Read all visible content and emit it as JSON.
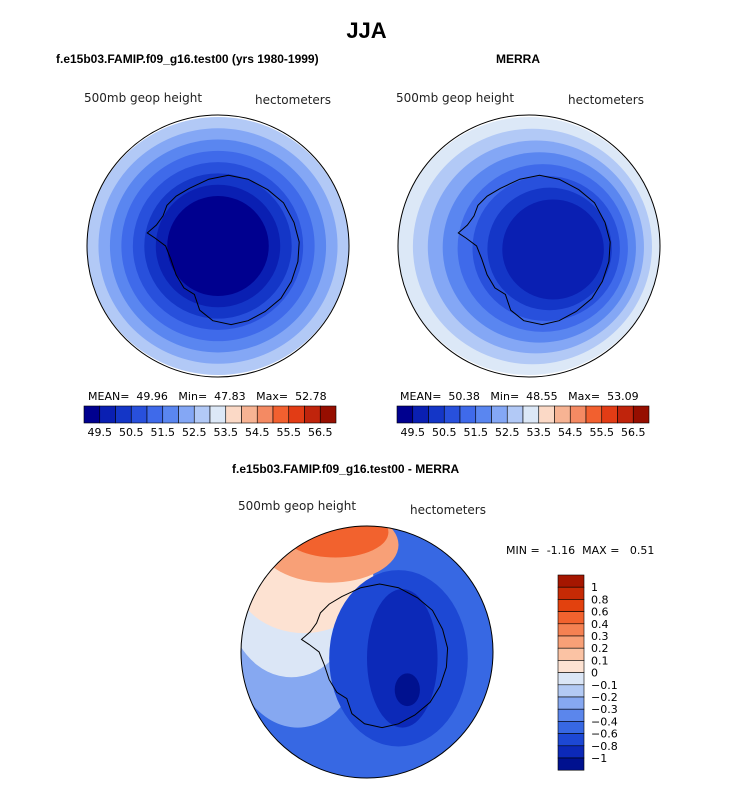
{
  "title": "JJA",
  "chart_data": [
    {
      "type": "heatmap",
      "panel": "model",
      "title": "f.e15b03.FAMIP.f09_g16.test00 (yrs 1980-1999)",
      "variable": "500mb geop height",
      "units": "hectometers",
      "stats": {
        "mean_label": "MEAN=",
        "mean": "49.96",
        "min_label": "Min=",
        "min": "47.83",
        "max_label": "Max=",
        "max": "52.78"
      },
      "colorbar": {
        "ticks": [
          "49.5",
          "50.5",
          "51.5",
          "52.5",
          "53.5",
          "54.5",
          "55.5",
          "56.5"
        ],
        "colors": [
          "#00008f",
          "#0a1fb2",
          "#1436c7",
          "#2850dc",
          "#3f6aea",
          "#5a86f0",
          "#84a7f5",
          "#b2c9f6",
          "#dce8f7",
          "#fbd9c6",
          "#f7b393",
          "#f48a63",
          "#f2602f",
          "#e23c15",
          "#c0240c",
          "#960e00"
        ]
      },
      "rings": [
        "#00008f",
        "#0a1fb2",
        "#1436c7",
        "#2850dc",
        "#3f6aea",
        "#5a86f0",
        "#84a7f5",
        "#b2c9f6"
      ]
    },
    {
      "type": "heatmap",
      "panel": "observations",
      "title": "MERRA",
      "variable": "500mb geop height",
      "units": "hectometers",
      "stats": {
        "mean_label": "MEAN=",
        "mean": "50.38",
        "min_label": "Min=",
        "min": "48.55",
        "max_label": "Max=",
        "max": "53.09"
      },
      "colorbar": {
        "ticks": [
          "49.5",
          "50.5",
          "51.5",
          "52.5",
          "53.5",
          "54.5",
          "55.5",
          "56.5"
        ],
        "colors": [
          "#00008f",
          "#0a1fb2",
          "#1436c7",
          "#2850dc",
          "#3f6aea",
          "#5a86f0",
          "#84a7f5",
          "#b2c9f6",
          "#dce8f7",
          "#fbd9c6",
          "#f7b393",
          "#f48a63",
          "#f2602f",
          "#e23c15",
          "#c0240c",
          "#960e00"
        ]
      },
      "rings": [
        "#0a1fb2",
        "#1436c7",
        "#2850dc",
        "#3f6aea",
        "#5a86f0",
        "#84a7f5",
        "#b2c9f6",
        "#dce8f7"
      ]
    },
    {
      "type": "heatmap",
      "panel": "difference",
      "title": "f.e15b03.FAMIP.f09_g16.test00 - MERRA",
      "variable": "500mb geop height",
      "units": "hectometers",
      "stats": {
        "min_label": "MIN =",
        "min": "-1.16",
        "max_label": "MAX =",
        "max": "0.51"
      },
      "colorbar": {
        "ticks": [
          "1",
          "0.8",
          "0.6",
          "0.4",
          "0.3",
          "0.2",
          "0.1",
          "0",
          "-0.1",
          "-0.2",
          "-0.3",
          "-0.4",
          "-0.6",
          "-0.8",
          "-1"
        ],
        "colors": [
          "#a51600",
          "#c62a05",
          "#e2410e",
          "#f2622e",
          "#f58152",
          "#f8a077",
          "#fbc3a4",
          "#fde2d2",
          "#dbe6f6",
          "#b3caf4",
          "#86a8f1",
          "#5b86ec",
          "#3768e3",
          "#1d48d4",
          "#0c29b8",
          "#00118f"
        ]
      }
    }
  ]
}
